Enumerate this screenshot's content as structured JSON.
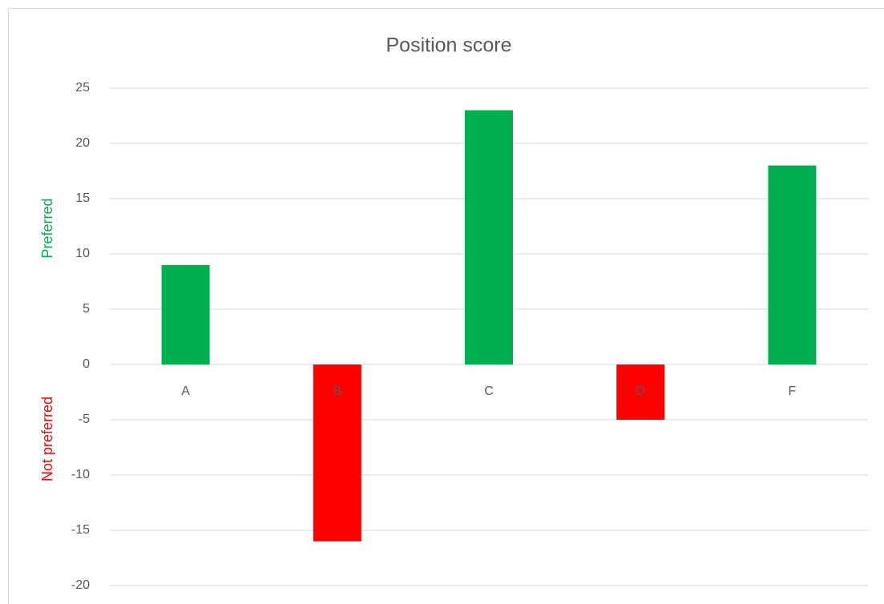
{
  "chart_data": {
    "type": "bar",
    "title": "Position score",
    "categories": [
      "A",
      "B",
      "C",
      "D",
      "F"
    ],
    "values": [
      9,
      -16,
      23,
      -5,
      18
    ],
    "colors": [
      "#00b050",
      "#ff0000",
      "#00b050",
      "#ff0000",
      "#00b050"
    ],
    "ylim": [
      -20,
      25
    ],
    "yticks": [
      -20,
      -15,
      -10,
      -5,
      0,
      5,
      10,
      15,
      20,
      25
    ],
    "grid": true,
    "axis_labels": [
      {
        "text": "Preferred",
        "color": "#00b050"
      },
      {
        "text": "Not preferred",
        "color": "#ff0000"
      }
    ]
  }
}
